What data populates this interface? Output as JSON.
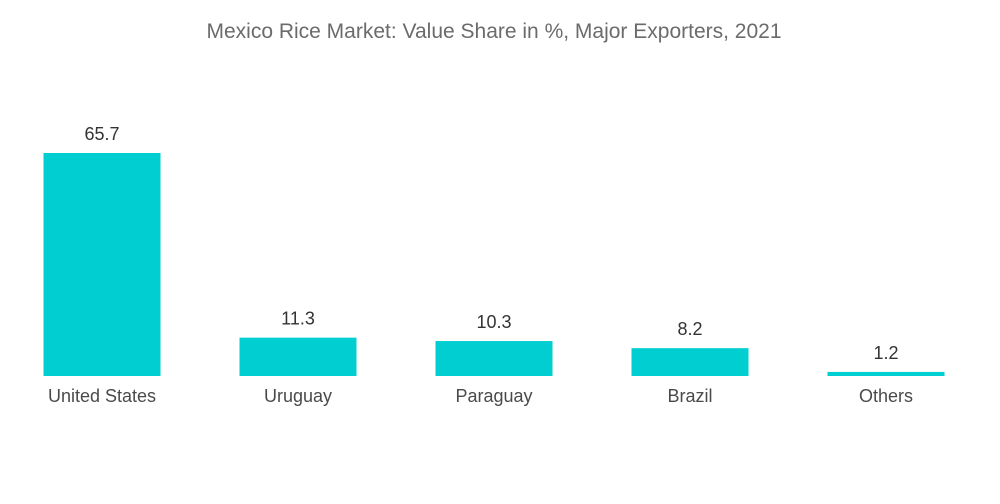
{
  "chart_data": {
    "type": "bar",
    "title": "Mexico Rice Market: Value Share in %, Major Exporters, 2021",
    "categories": [
      "United States",
      "Uruguay",
      "Paraguay",
      "Brazil",
      "Others"
    ],
    "values": [
      65.7,
      11.3,
      10.3,
      8.2,
      1.2
    ],
    "value_labels": [
      "65.7",
      "11.3",
      "10.3",
      "8.2",
      "1.2"
    ],
    "xlabel": "",
    "ylabel": "",
    "ylim": [
      0,
      65.7
    ],
    "grid": false,
    "legend": "none",
    "bar_color": "#00CED1"
  }
}
